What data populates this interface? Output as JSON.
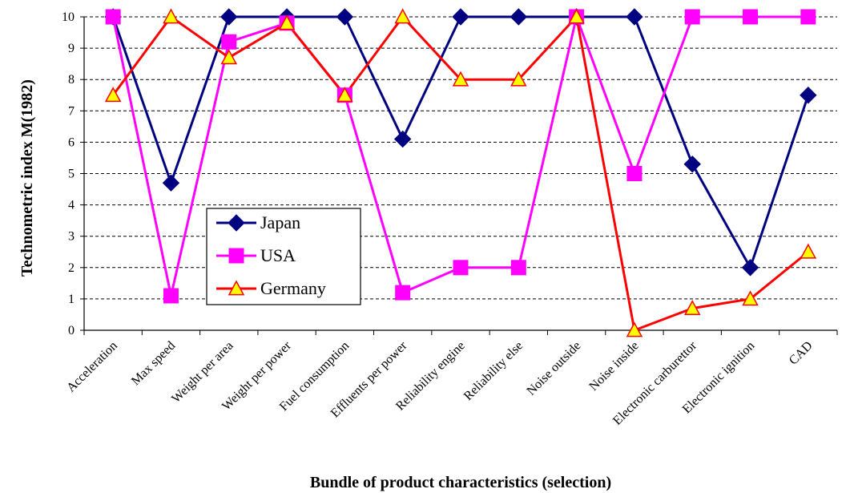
{
  "chart_data": {
    "type": "line",
    "xlabel": "Bundle of product characteristics (selection)",
    "ylabel": "Technometric index M(1982)",
    "ylim": [
      0,
      10
    ],
    "yticks": [
      0,
      1,
      2,
      3,
      4,
      5,
      6,
      7,
      8,
      9,
      10
    ],
    "grid": "horizontal dashed",
    "legend_position": "lower-left",
    "categories": [
      "Acceleration",
      "Max speed",
      "Weight per area",
      "Weight per power",
      "Fuel consumption",
      "Effluents per power",
      "Reliability engine",
      "Reliability else",
      "Noise outside",
      "Noise inside",
      "Electronic carburettor",
      "Electronic ignition",
      "CAD"
    ],
    "series": [
      {
        "name": "Japan",
        "color": "#000080",
        "marker": "diamond",
        "values": [
          10,
          4.7,
          10,
          10,
          10,
          6.1,
          10,
          10,
          10,
          10,
          5.3,
          2.0,
          7.5
        ]
      },
      {
        "name": "USA",
        "color": "#ff00ff",
        "marker": "square",
        "values": [
          10,
          1.1,
          9.2,
          9.8,
          7.5,
          1.2,
          2.0,
          2.0,
          10,
          5.0,
          10,
          10,
          10
        ]
      },
      {
        "name": "Germany",
        "color": "#ff0000",
        "marker": "triangle",
        "marker_fill": "#ffff00",
        "values": [
          7.5,
          10,
          8.7,
          9.8,
          7.5,
          10,
          8.0,
          8.0,
          10,
          0.0,
          0.7,
          1.0,
          2.5
        ]
      }
    ]
  }
}
